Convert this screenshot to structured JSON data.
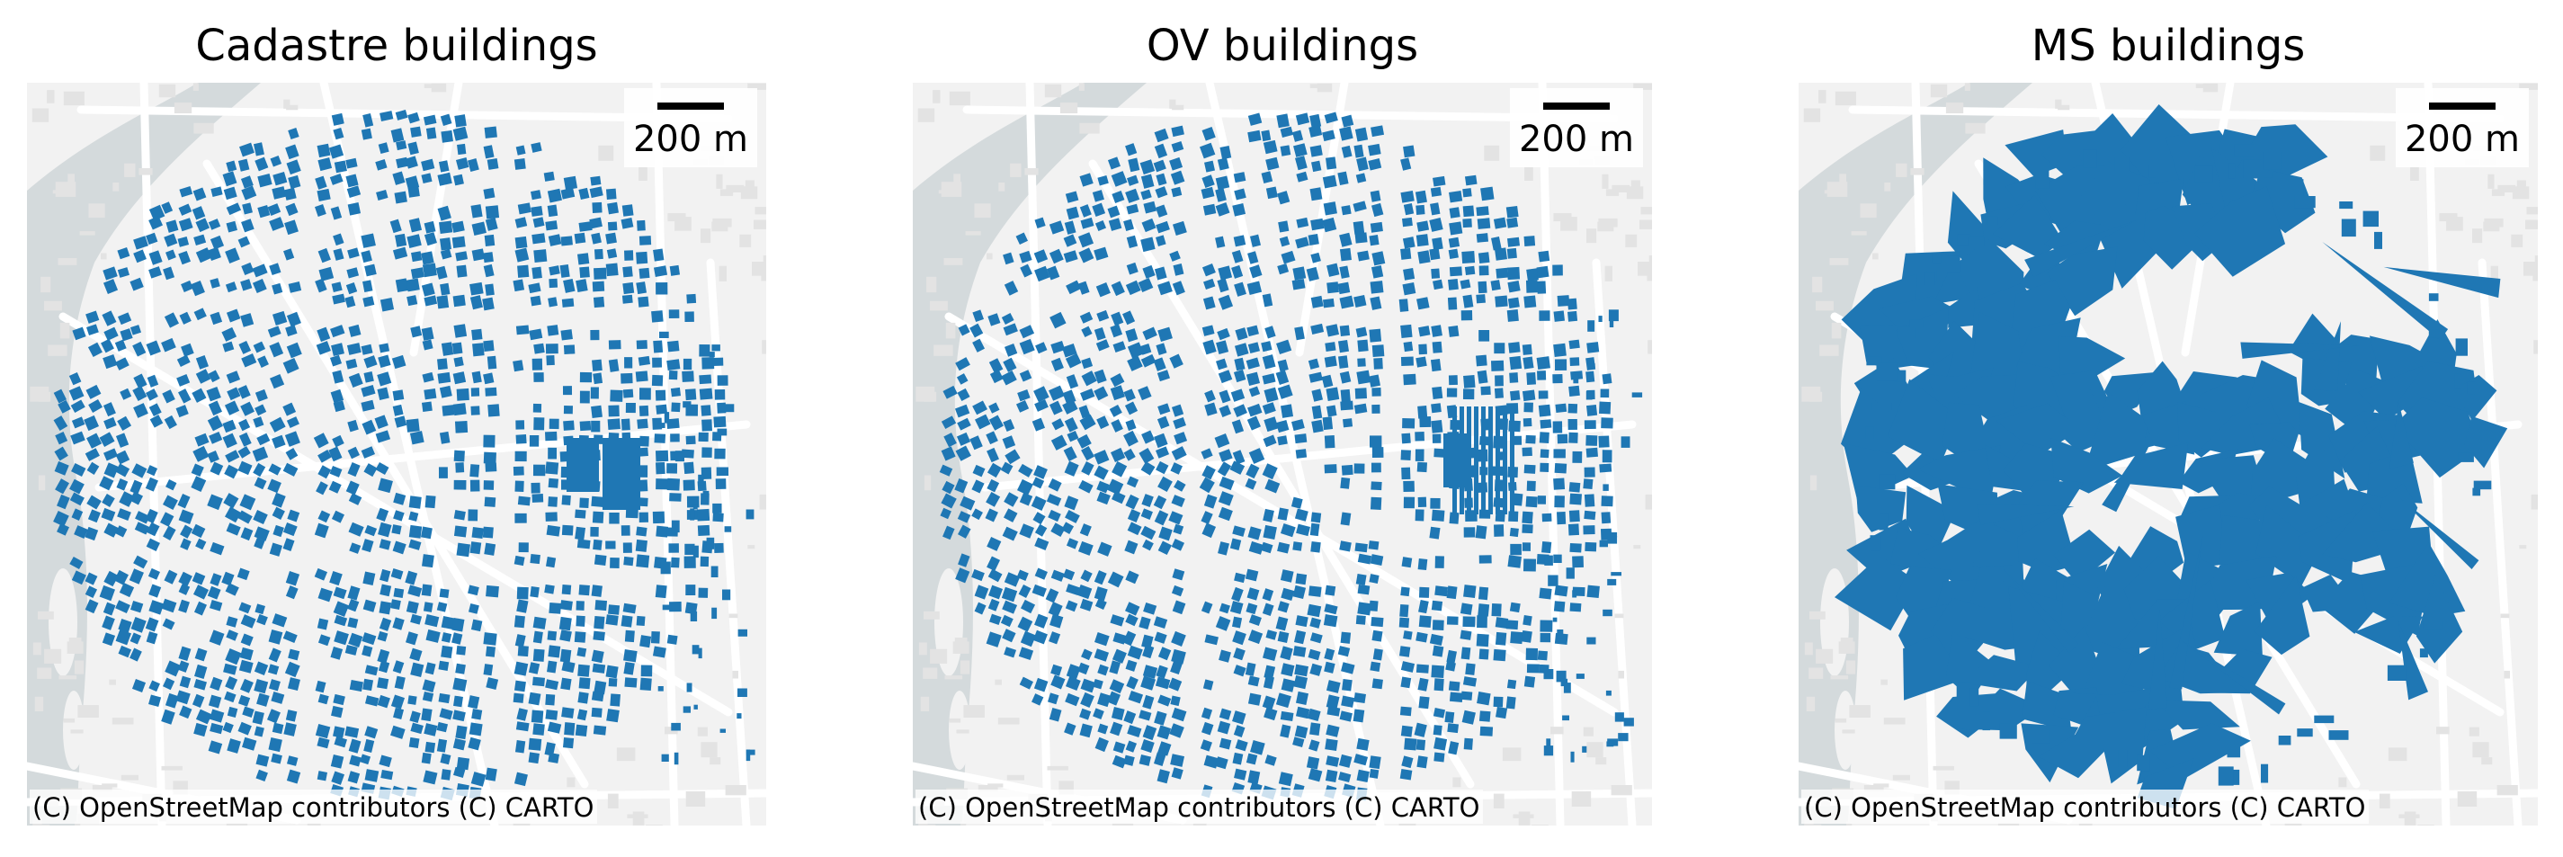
{
  "figure": {
    "colors": {
      "buildings": "#1f77b4",
      "basemap_land": "#f2f2f2",
      "basemap_water": "#d4dadc",
      "basemap_roads": "#ffffff"
    },
    "panels": [
      {
        "id": "cadastre",
        "title": "Cadastre buildings",
        "scale_label": "200 m",
        "attribution": "(C) OpenStreetMap contributors (C) CARTO",
        "building_style": "fine"
      },
      {
        "id": "ov",
        "title": "OV buildings",
        "scale_label": "200 m",
        "attribution": "(C) OpenStreetMap contributors (C) CARTO",
        "building_style": "fine"
      },
      {
        "id": "ms",
        "title": "MS buildings",
        "scale_label": "200 m",
        "attribution": "(C) OpenStreetMap contributors (C) CARTO",
        "building_style": "coarse"
      }
    ]
  }
}
